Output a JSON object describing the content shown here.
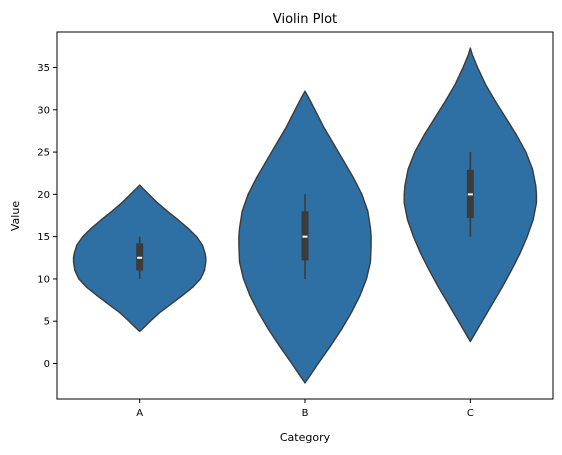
{
  "chart_data": {
    "type": "violin",
    "title": "Violin Plot",
    "xlabel": "Category",
    "ylabel": "Value",
    "ylim": [
      -4.2,
      39.2
    ],
    "yticks": [
      0,
      5,
      10,
      15,
      20,
      25,
      30,
      35
    ],
    "categories": [
      "A",
      "B",
      "C"
    ],
    "color": "#2e6fa4",
    "edge_color": "#3b3b3b",
    "box_color": "#3b3b3b",
    "median_color": "#ffffff",
    "violins": [
      {
        "category": "A",
        "min_extent": 3.8,
        "max_extent": 21.1,
        "median": 12.5,
        "q1": 11.0,
        "q3": 14.2,
        "whisker_low": 10.0,
        "whisker_high": 15.0,
        "profile": [
          [
            3.8,
            0.0
          ],
          [
            4.3,
            0.07
          ],
          [
            5.0,
            0.16
          ],
          [
            6.0,
            0.3
          ],
          [
            7.0,
            0.47
          ],
          [
            8.0,
            0.64
          ],
          [
            9.0,
            0.8
          ],
          [
            10.0,
            0.92
          ],
          [
            11.0,
            0.98
          ],
          [
            12.0,
            1.0
          ],
          [
            12.5,
            1.0
          ],
          [
            13.0,
            0.99
          ],
          [
            14.0,
            0.95
          ],
          [
            15.0,
            0.86
          ],
          [
            16.0,
            0.73
          ],
          [
            17.0,
            0.58
          ],
          [
            18.0,
            0.42
          ],
          [
            19.0,
            0.27
          ],
          [
            20.0,
            0.14
          ],
          [
            20.7,
            0.05
          ],
          [
            21.1,
            0.0
          ]
        ]
      },
      {
        "category": "B",
        "min_extent": -2.3,
        "max_extent": 32.2,
        "median": 15.0,
        "q1": 12.2,
        "q3": 18.0,
        "whisker_low": 10.0,
        "whisker_high": 20.0,
        "profile": [
          [
            -2.3,
            0.0
          ],
          [
            -1.5,
            0.07
          ],
          [
            0.0,
            0.2
          ],
          [
            2.0,
            0.38
          ],
          [
            4.0,
            0.55
          ],
          [
            6.0,
            0.7
          ],
          [
            8.0,
            0.83
          ],
          [
            10.0,
            0.93
          ],
          [
            12.0,
            0.99
          ],
          [
            14.0,
            1.0
          ],
          [
            15.0,
            1.0
          ],
          [
            16.0,
            0.99
          ],
          [
            18.0,
            0.95
          ],
          [
            20.0,
            0.86
          ],
          [
            22.0,
            0.73
          ],
          [
            24.0,
            0.58
          ],
          [
            26.0,
            0.43
          ],
          [
            28.0,
            0.28
          ],
          [
            30.0,
            0.15
          ],
          [
            31.5,
            0.05
          ],
          [
            32.2,
            0.0
          ]
        ]
      },
      {
        "category": "C",
        "min_extent": 2.6,
        "max_extent": 37.3,
        "median": 20.0,
        "q1": 17.2,
        "q3": 22.9,
        "whisker_low": 15.0,
        "whisker_high": 25.0,
        "profile": [
          [
            2.6,
            0.0
          ],
          [
            3.4,
            0.06
          ],
          [
            5.0,
            0.18
          ],
          [
            7.0,
            0.33
          ],
          [
            9.0,
            0.48
          ],
          [
            11.0,
            0.62
          ],
          [
            13.0,
            0.75
          ],
          [
            15.0,
            0.86
          ],
          [
            17.0,
            0.95
          ],
          [
            19.0,
            1.0
          ],
          [
            20.0,
            1.0
          ],
          [
            21.0,
            0.99
          ],
          [
            23.0,
            0.94
          ],
          [
            25.0,
            0.84
          ],
          [
            27.0,
            0.7
          ],
          [
            29.0,
            0.54
          ],
          [
            31.0,
            0.38
          ],
          [
            33.0,
            0.23
          ],
          [
            35.0,
            0.11
          ],
          [
            36.5,
            0.03
          ],
          [
            37.3,
            0.0
          ]
        ]
      }
    ]
  }
}
